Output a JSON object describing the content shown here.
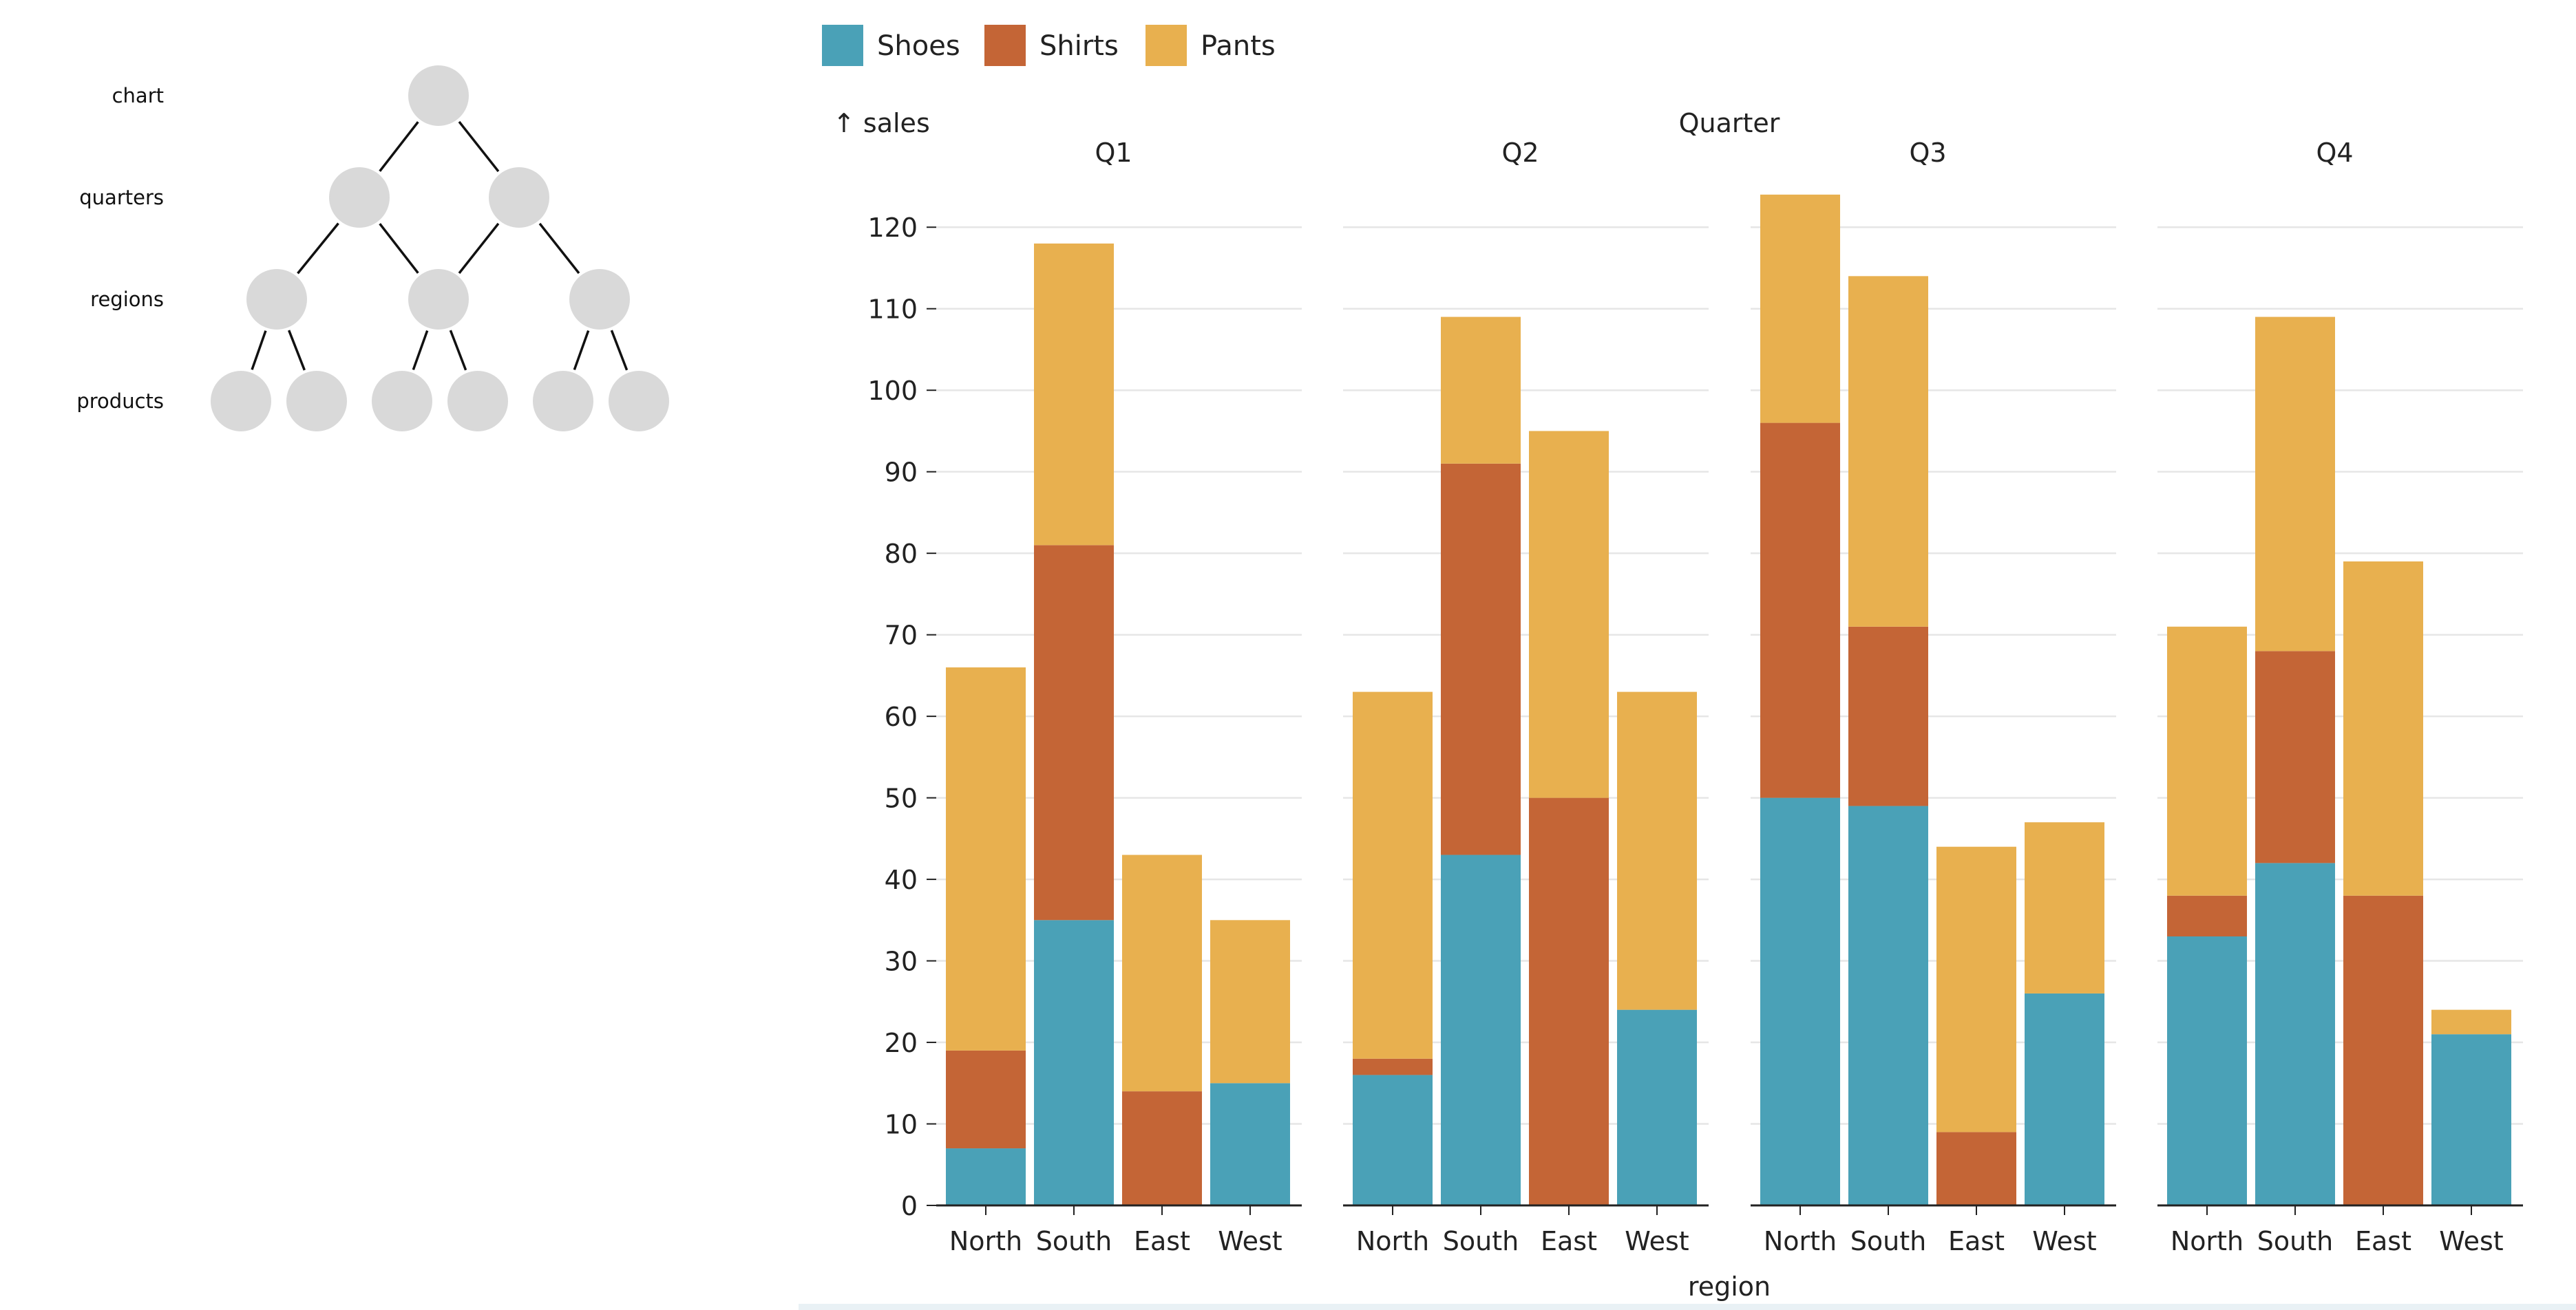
{
  "tree": {
    "levels": [
      "chart",
      "quarters",
      "regions",
      "products"
    ]
  },
  "legend": [
    {
      "name": "Shoes",
      "color": "#4aa1b7"
    },
    {
      "name": "Shirts",
      "color": "#c46536"
    },
    {
      "name": "Pants",
      "color": "#e8b04f"
    }
  ],
  "chart_data": {
    "type": "bar",
    "stacked": true,
    "facet_label": "Quarter",
    "ylabel": "↑ sales",
    "xlabel": "region",
    "ylim": [
      0,
      125
    ],
    "yticks": [
      0,
      10,
      20,
      30,
      40,
      50,
      60,
      70,
      80,
      90,
      100,
      110,
      120
    ],
    "grid": true,
    "legend_position": "top-left",
    "categories": [
      "North",
      "South",
      "East",
      "West"
    ],
    "facets": [
      {
        "name": "Q1",
        "series": [
          {
            "name": "Shoes",
            "values": [
              7,
              35,
              0,
              15
            ]
          },
          {
            "name": "Shirts",
            "values": [
              12,
              46,
              14,
              0
            ]
          },
          {
            "name": "Pants",
            "values": [
              47,
              37,
              29,
              20
            ]
          }
        ]
      },
      {
        "name": "Q2",
        "series": [
          {
            "name": "Shoes",
            "values": [
              16,
              43,
              0,
              24
            ]
          },
          {
            "name": "Shirts",
            "values": [
              2,
              48,
              50,
              0
            ]
          },
          {
            "name": "Pants",
            "values": [
              45,
              18,
              45,
              39
            ]
          }
        ]
      },
      {
        "name": "Q3",
        "series": [
          {
            "name": "Shoes",
            "values": [
              50,
              49,
              0,
              26
            ]
          },
          {
            "name": "Shirts",
            "values": [
              46,
              22,
              9,
              0
            ]
          },
          {
            "name": "Pants",
            "values": [
              28,
              43,
              35,
              21
            ]
          }
        ]
      },
      {
        "name": "Q4",
        "series": [
          {
            "name": "Shoes",
            "values": [
              33,
              42,
              0,
              21
            ]
          },
          {
            "name": "Shirts",
            "values": [
              5,
              26,
              38,
              0
            ]
          },
          {
            "name": "Pants",
            "values": [
              33,
              41,
              41,
              3
            ]
          }
        ]
      }
    ]
  }
}
